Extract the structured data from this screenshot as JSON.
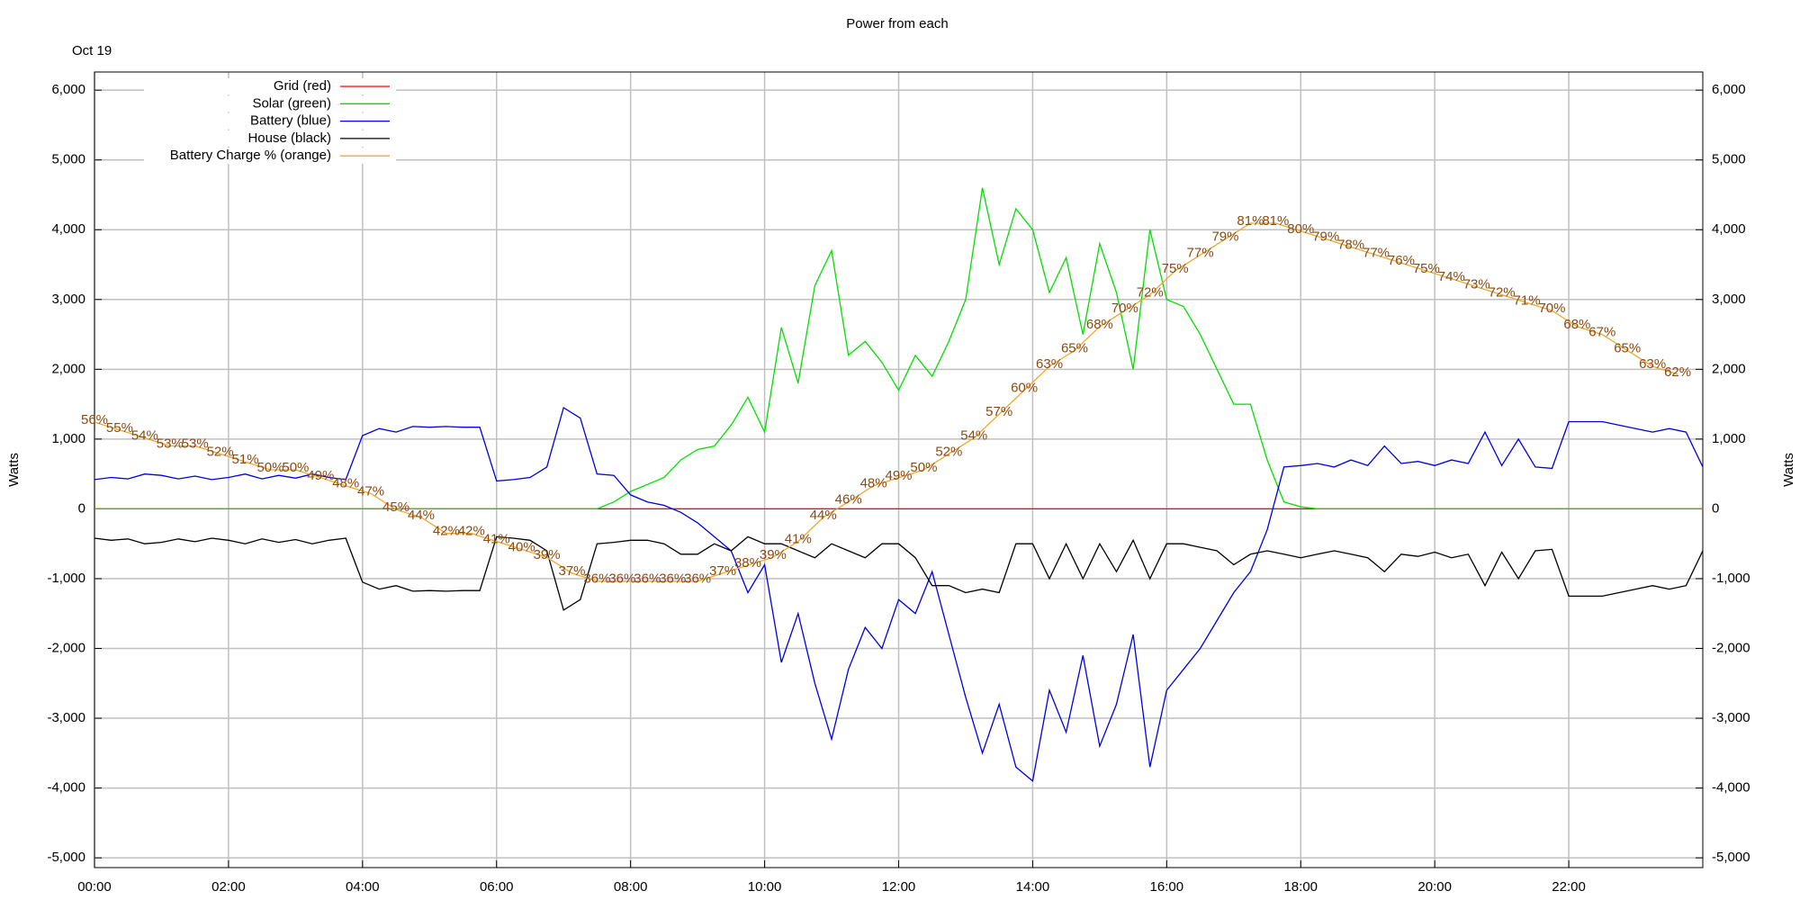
{
  "chart_data": {
    "type": "line",
    "title": "Power from each",
    "annotation": "Oct 19",
    "y_label": "Watts",
    "xlim": [
      0,
      24
    ],
    "xticks": [
      {
        "value": 0,
        "label": "00:00"
      },
      {
        "value": 2,
        "label": "02:00"
      },
      {
        "value": 4,
        "label": "04:00"
      },
      {
        "value": 6,
        "label": "06:00"
      },
      {
        "value": 8,
        "label": "08:00"
      },
      {
        "value": 10,
        "label": "10:00"
      },
      {
        "value": 12,
        "label": "12:00"
      },
      {
        "value": 14,
        "label": "14:00"
      },
      {
        "value": 16,
        "label": "16:00"
      },
      {
        "value": 18,
        "label": "18:00"
      },
      {
        "value": 20,
        "label": "20:00"
      },
      {
        "value": 22,
        "label": "22:00"
      }
    ],
    "ylim": [
      -5140,
      6260
    ],
    "yticks": [
      {
        "value": -5000,
        "label": "-5,000"
      },
      {
        "value": -4000,
        "label": "-4,000"
      },
      {
        "value": -3000,
        "label": "-3,000"
      },
      {
        "value": -2000,
        "label": "-2,000"
      },
      {
        "value": -1000,
        "label": "-1,000"
      },
      0,
      {
        "value": 1000,
        "label": "1,000"
      },
      {
        "value": 2000,
        "label": "2,000"
      },
      {
        "value": 3000,
        "label": "3,000"
      },
      {
        "value": 4000,
        "label": "4,000"
      },
      {
        "value": 5000,
        "label": "5,000"
      },
      {
        "value": 6000,
        "label": "6,000"
      }
    ],
    "y2lim": [
      0,
      100
    ],
    "grid": true,
    "legend": "top-left",
    "x": [
      0,
      0.25,
      0.5,
      0.75,
      1,
      1.25,
      1.5,
      1.75,
      2,
      2.25,
      2.5,
      2.75,
      3,
      3.25,
      3.5,
      3.75,
      4,
      4.25,
      4.5,
      4.75,
      5,
      5.25,
      5.5,
      5.75,
      6,
      6.25,
      6.5,
      6.75,
      7,
      7.25,
      7.5,
      7.75,
      8,
      8.25,
      8.5,
      8.75,
      9,
      9.25,
      9.5,
      9.75,
      10,
      10.25,
      10.5,
      10.75,
      11,
      11.25,
      11.5,
      11.75,
      12,
      12.25,
      12.5,
      12.75,
      13,
      13.25,
      13.5,
      13.75,
      14,
      14.25,
      14.5,
      14.75,
      15,
      15.25,
      15.5,
      15.75,
      16,
      16.25,
      16.5,
      16.75,
      17,
      17.25,
      17.5,
      17.75,
      18,
      18.25,
      18.5,
      18.75,
      19,
      19.25,
      19.5,
      19.75,
      20,
      20.25,
      20.5,
      20.75,
      21,
      21.25,
      21.5,
      21.75,
      22,
      22.25,
      22.5,
      22.75,
      23,
      23.25,
      23.5,
      23.75,
      24
    ],
    "series": [
      {
        "name": "Grid (red)",
        "color": "#ff0000",
        "values": [
          0,
          0,
          0,
          0,
          0,
          0,
          0,
          0,
          0,
          0,
          0,
          0,
          0,
          0,
          0,
          0,
          0,
          0,
          0,
          0,
          0,
          0,
          0,
          0,
          0,
          0,
          0,
          0,
          0,
          0,
          0,
          0,
          0,
          0,
          0,
          0,
          0,
          0,
          0,
          0,
          0,
          0,
          0,
          0,
          0,
          0,
          0,
          0,
          0,
          0,
          0,
          0,
          0,
          0,
          0,
          0,
          0,
          0,
          0,
          0,
          0,
          0,
          0,
          0,
          0,
          0,
          0,
          0,
          0,
          0,
          0,
          0,
          0,
          0,
          0,
          0,
          0,
          0,
          0,
          0,
          0,
          0,
          0,
          0,
          0,
          0,
          0,
          0,
          0,
          0,
          0,
          0,
          0,
          0,
          0,
          0,
          0
        ]
      },
      {
        "name": "Solar (green)",
        "color": "#00e000",
        "values": [
          0,
          0,
          0,
          0,
          0,
          0,
          0,
          0,
          0,
          0,
          0,
          0,
          0,
          0,
          0,
          0,
          0,
          0,
          0,
          0,
          0,
          0,
          0,
          0,
          0,
          0,
          0,
          0,
          0,
          0,
          0,
          100,
          250,
          350,
          450,
          700,
          850,
          900,
          1200,
          1600,
          1100,
          2600,
          1800,
          3200,
          3700,
          2200,
          2400,
          2100,
          1700,
          2200,
          1900,
          2400,
          3000,
          4600,
          3500,
          4300,
          4000,
          3100,
          3600,
          2500,
          3800,
          3100,
          2000,
          4000,
          3000,
          2900,
          2500,
          2000,
          1500,
          1500,
          700,
          100,
          30,
          0,
          0,
          0,
          0,
          0,
          0,
          0,
          0,
          0,
          0,
          0,
          0,
          0,
          0,
          0,
          0,
          0,
          0,
          0,
          0,
          0,
          0,
          0,
          0
        ]
      },
      {
        "name": "Battery (blue)",
        "color": "#0000e0",
        "values": [
          420,
          450,
          430,
          500,
          480,
          430,
          470,
          420,
          450,
          500,
          430,
          480,
          440,
          500,
          450,
          420,
          1050,
          1150,
          1100,
          1180,
          1170,
          1180,
          1170,
          1170,
          400,
          420,
          450,
          600,
          1450,
          1300,
          500,
          480,
          200,
          100,
          50,
          -50,
          -200,
          -400,
          -600,
          -1200,
          -800,
          -2200,
          -1500,
          -2500,
          -3300,
          -2300,
          -1700,
          -2000,
          -1300,
          -1500,
          -900,
          -1800,
          -2700,
          -3500,
          -2800,
          -3700,
          -3900,
          -2600,
          -3200,
          -2100,
          -3400,
          -2800,
          -1800,
          -3700,
          -2600,
          -2300,
          -2000,
          -1600,
          -1200,
          -900,
          -300,
          600,
          620,
          650,
          600,
          700,
          620,
          900,
          650,
          680,
          620,
          700,
          650,
          1100,
          620,
          1000,
          600,
          580,
          1250,
          1250,
          1250,
          1200,
          1150,
          1100,
          1150,
          1100,
          600
        ]
      },
      {
        "name": "House (black)",
        "color": "#000000",
        "values": [
          -420,
          -450,
          -430,
          -500,
          -480,
          -430,
          -470,
          -420,
          -450,
          -500,
          -430,
          -480,
          -440,
          -500,
          -450,
          -420,
          -1050,
          -1150,
          -1100,
          -1180,
          -1170,
          -1180,
          -1170,
          -1170,
          -400,
          -420,
          -450,
          -600,
          -1450,
          -1300,
          -500,
          -480,
          -450,
          -450,
          -500,
          -650,
          -650,
          -500,
          -600,
          -400,
          -500,
          -500,
          -600,
          -700,
          -500,
          -600,
          -700,
          -500,
          -500,
          -700,
          -1100,
          -1100,
          -1200,
          -1150,
          -1200,
          -500,
          -500,
          -1000,
          -500,
          -1000,
          -500,
          -900,
          -450,
          -1000,
          -500,
          -500,
          -550,
          -600,
          -800,
          -650,
          -600,
          -650,
          -700,
          -650,
          -600,
          -650,
          -700,
          -900,
          -650,
          -680,
          -620,
          -700,
          -650,
          -1100,
          -620,
          -1000,
          -600,
          -580,
          -1250,
          -1250,
          -1250,
          -1200,
          -1150,
          -1100,
          -1150,
          -1100,
          -600
        ]
      },
      {
        "name": "Battery Charge % (orange)",
        "color": "#f0a830",
        "label_color": "#8b4a10",
        "axis": "y2",
        "x": [
          0,
          0.375,
          0.75,
          1.125,
          1.5,
          1.875,
          2.25,
          2.625,
          3,
          3.375,
          3.75,
          4.125,
          4.5,
          4.875,
          5.25,
          5.625,
          6,
          6.375,
          6.75,
          7.125,
          7.5,
          7.875,
          8.25,
          8.625,
          9,
          9.375,
          9.75,
          10.125,
          10.5,
          10.875,
          11.25,
          11.625,
          12,
          12.375,
          12.75,
          13.125,
          13.5,
          13.875,
          14.25,
          14.625,
          15,
          15.375,
          15.75,
          16.125,
          16.5,
          16.875,
          17.25,
          17.625,
          18,
          18.375,
          18.75,
          19.125,
          19.5,
          19.875,
          20.25,
          20.625,
          21,
          21.375,
          21.75,
          22.125,
          22.5,
          22.875,
          23.25,
          23.625
        ],
        "values": [
          56,
          55,
          54,
          53,
          53,
          52,
          51,
          50,
          50,
          49,
          48,
          47,
          45,
          44,
          42,
          42,
          41,
          40,
          39,
          37,
          36,
          36,
          36,
          36,
          36,
          37,
          38,
          39,
          41,
          44,
          46,
          48,
          49,
          50,
          52,
          54,
          57,
          60,
          63,
          65,
          68,
          70,
          72,
          75,
          77,
          79,
          81,
          81,
          80,
          79,
          78,
          77,
          76,
          75,
          74,
          73,
          72,
          71,
          70,
          68,
          67,
          65,
          63,
          62
        ],
        "value_labels": [
          "56%",
          "55%",
          "54%",
          "53%",
          "53%",
          "52%",
          "51%",
          "50%",
          "50%",
          "49%",
          "48%",
          "47%",
          "45%",
          "44%",
          "42%",
          "42%",
          "41%",
          "40%",
          "39%",
          "37%",
          "36%",
          "36%",
          "36%",
          "36%",
          "36%",
          "37%",
          "38%",
          "39%",
          "41%",
          "44%",
          "46%",
          "48%",
          "49%",
          "50%",
          "52%",
          "54%",
          "57%",
          "60%",
          "63%",
          "65%",
          "68%",
          "70%",
          "72%",
          "75%",
          "77%",
          "79%",
          "81%",
          "81%",
          "80%",
          "79%",
          "78%",
          "77%",
          "76%",
          "75%",
          "74%",
          "73%",
          "72%",
          "71%",
          "70%",
          "68%",
          "67%",
          "65%",
          "63%",
          "62%"
        ]
      }
    ]
  }
}
